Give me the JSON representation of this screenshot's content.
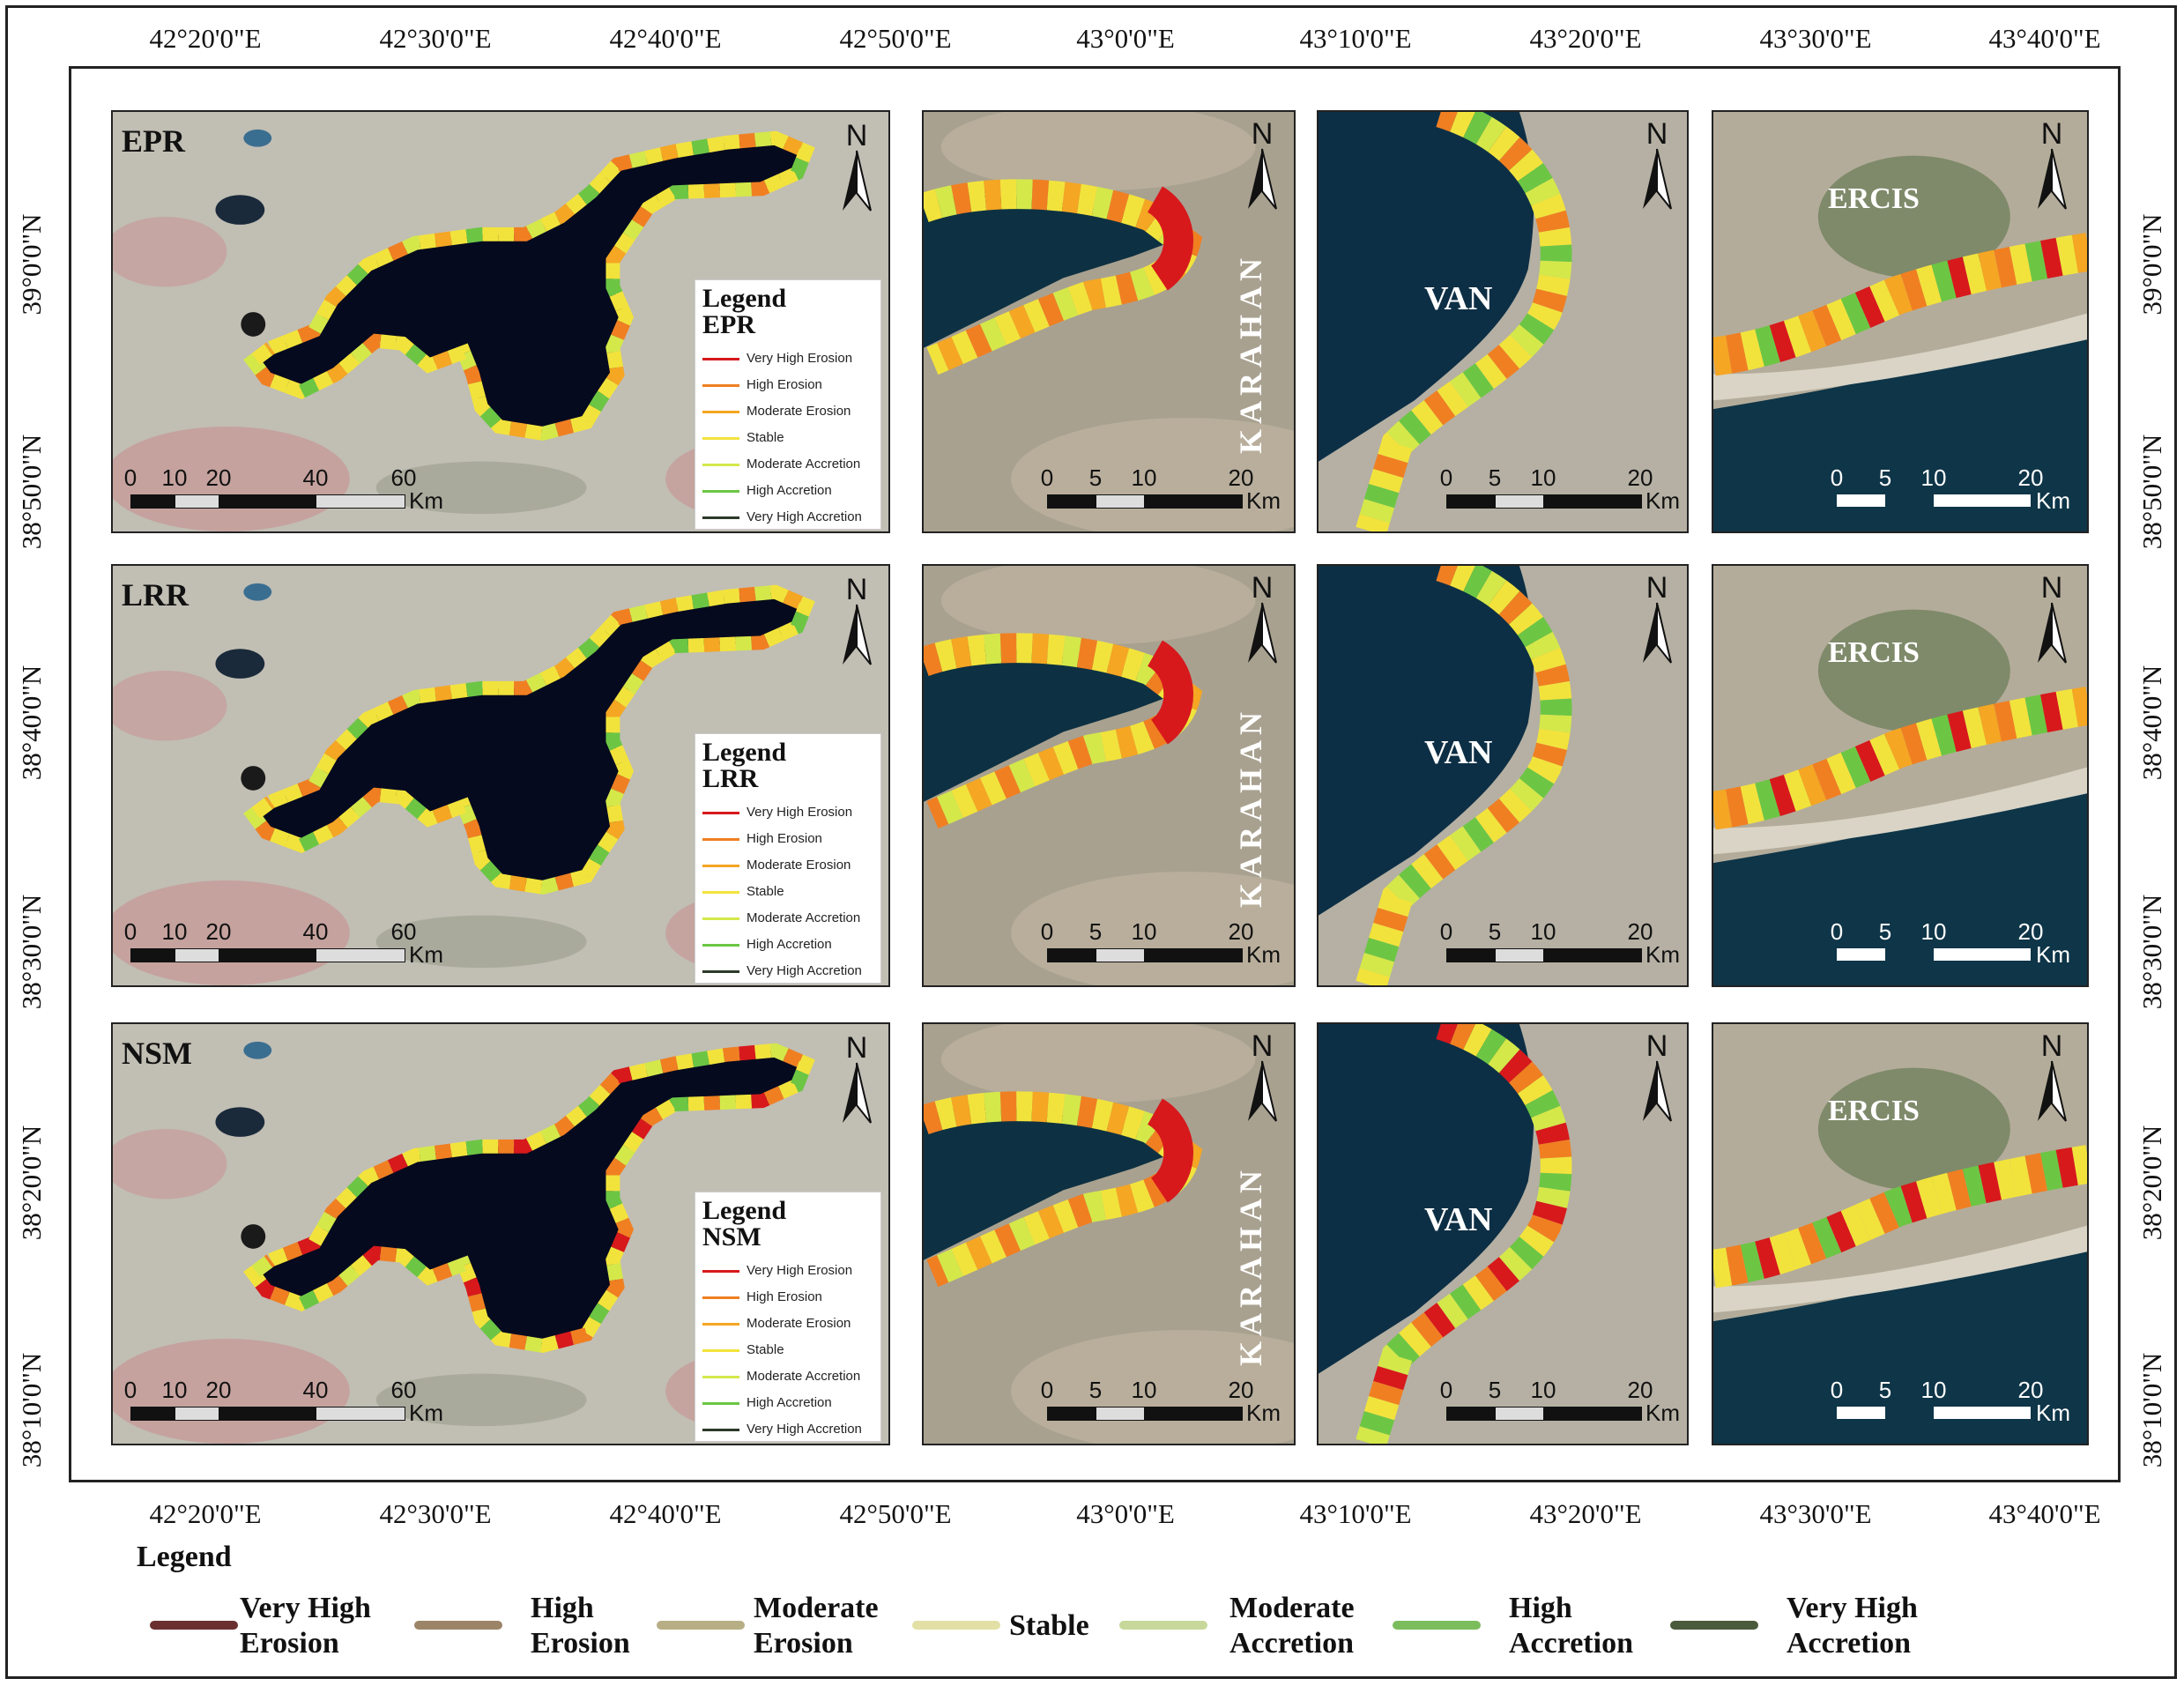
{
  "longitude_labels_top": [
    "42°20'0\"E",
    "42°30'0\"E",
    "42°40'0\"E",
    "42°50'0\"E",
    "43°0'0\"E",
    "43°10'0\"E",
    "43°20'0\"E",
    "43°30'0\"E",
    "43°40'0\"E"
  ],
  "longitude_labels_bottom": [
    "42°20'0\"E",
    "42°30'0\"E",
    "42°40'0\"E",
    "42°50'0\"E",
    "43°0'0\"E",
    "43°10'0\"E",
    "43°20'0\"E",
    "43°30'0\"E",
    "43°40'0\"E"
  ],
  "latitude_labels_left": [
    "39°0'0\"N",
    "38°50'0\"N",
    "38°40'0\"N",
    "38°30'0\"N",
    "38°20'0\"N",
    "38°10'0\"N"
  ],
  "latitude_labels_right": [
    "39°0'0\"N",
    "38°50'0\"N",
    "38°40'0\"N",
    "38°30'0\"N",
    "38°20'0\"N",
    "38°10'0\"N"
  ],
  "north_label": "N",
  "rows": [
    {
      "method": "EPR",
      "legend_title": "Legend",
      "legend_method": "EPR"
    },
    {
      "method": "LRR",
      "legend_title": "Legend",
      "legend_method": "LRR"
    },
    {
      "method": "NSM",
      "legend_title": "Legend",
      "legend_method": "NSM"
    }
  ],
  "places": {
    "karahan": "KARAHAN",
    "van": "VAN",
    "ercis": "ERCIS"
  },
  "scales": {
    "overview": [
      "0",
      "10",
      "20",
      "40",
      "60"
    ],
    "karahan": [
      "0",
      "5",
      "10",
      "20"
    ],
    "van": [
      "0",
      "5",
      "10",
      "20"
    ],
    "ercis": [
      "0",
      "5",
      "10",
      "20"
    ],
    "unit": "Km"
  },
  "small_legend_items": [
    "Very High Erosion",
    "High Erosion",
    "Moderate Erosion",
    "Stable",
    "Moderate Accretion",
    "High Accretion",
    "Very High Accretion"
  ],
  "main_legend": {
    "title": "Legend",
    "items": [
      {
        "line1": "Very High",
        "line2": "Erosion",
        "color": "#6b2f30"
      },
      {
        "line1": "High",
        "line2": "Erosion",
        "color": "#9c8468"
      },
      {
        "line1": "Moderate",
        "line2": "Erosion",
        "color": "#b8ae86"
      },
      {
        "line1": "Stable",
        "line2": "",
        "color": "#e3e0a6"
      },
      {
        "line1": "Moderate",
        "line2": "Accretion",
        "color": "#c7d89a"
      },
      {
        "line1": "High",
        "line2": "Accretion",
        "color": "#7bbd5d"
      },
      {
        "line1": "Very High",
        "line2": "Accretion",
        "color": "#4a5a3c"
      }
    ]
  },
  "class_colors": [
    "#d7191c",
    "#f07f22",
    "#f5a623",
    "#f2e33c",
    "#d4e84a",
    "#6cc644",
    "#2d3a2a"
  ]
}
